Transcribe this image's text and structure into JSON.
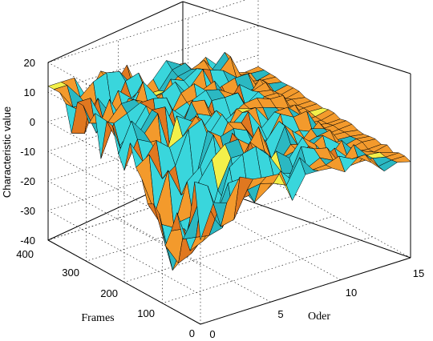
{
  "chart_data": {
    "type": "surface",
    "xlabel": "Oder",
    "ylabel": "Frames",
    "zlabel": "Characteristic value",
    "x_ticks": [
      "0",
      "5",
      "10",
      "15"
    ],
    "y_ticks": [
      "0",
      "100",
      "200",
      "300",
      "400"
    ],
    "z_ticks": [
      "20",
      "10",
      "0",
      "-10",
      "-20",
      "-30",
      "-40"
    ],
    "xlim": [
      0,
      15
    ],
    "ylim": [
      0,
      400
    ],
    "zlim": [
      -40,
      20
    ],
    "grid": true,
    "colors": {
      "surface_top": "#f39a2c",
      "surface_top_alt": "#e07820",
      "surface_under": "#39d6dc",
      "surface_under_alt": "#2bb8c2",
      "edge": "#000000",
      "highlight": "#f3f04a"
    }
  }
}
